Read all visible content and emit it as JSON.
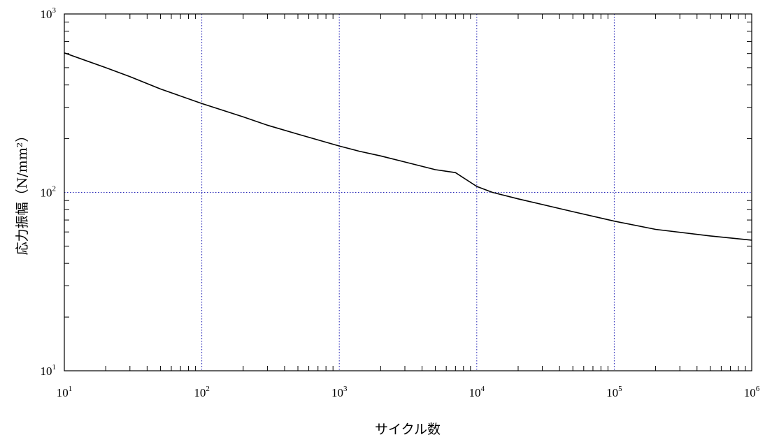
{
  "chart_data": {
    "type": "line",
    "xscale": "log",
    "yscale": "log",
    "xlabel": "サイクル数",
    "ylabel": "応力振幅（N/mm²）",
    "xlim": [
      10,
      1000000
    ],
    "ylim": [
      10,
      1000
    ],
    "grid": "major decades, dotted blue",
    "grid_color": "#1f1fb4",
    "x_tick_labels": [
      {
        "base": "10",
        "exp": "1",
        "value": 10
      },
      {
        "base": "10",
        "exp": "2",
        "value": 100
      },
      {
        "base": "10",
        "exp": "3",
        "value": 1000
      },
      {
        "base": "10",
        "exp": "4",
        "value": 10000
      },
      {
        "base": "10",
        "exp": "5",
        "value": 100000
      },
      {
        "base": "10",
        "exp": "6",
        "value": 1000000
      }
    ],
    "y_tick_labels": [
      {
        "base": "10",
        "exp": "1",
        "value": 10
      },
      {
        "base": "10",
        "exp": "2",
        "value": 100
      },
      {
        "base": "10",
        "exp": "3",
        "value": 1000
      }
    ],
    "series": [
      {
        "color": "#000000",
        "x": [
          10,
          20,
          30,
          50,
          100,
          200,
          300,
          500,
          1000,
          1400,
          2000,
          3000,
          5000,
          7000,
          10000,
          13000,
          20000,
          50000,
          100000,
          200000,
          500000,
          1000000
        ],
        "y": [
          605,
          500,
          445,
          380,
          315,
          265,
          238,
          212,
          182,
          170,
          160,
          148,
          134,
          129,
          108,
          100,
          92,
          78,
          69,
          62,
          57,
          54
        ]
      }
    ]
  }
}
